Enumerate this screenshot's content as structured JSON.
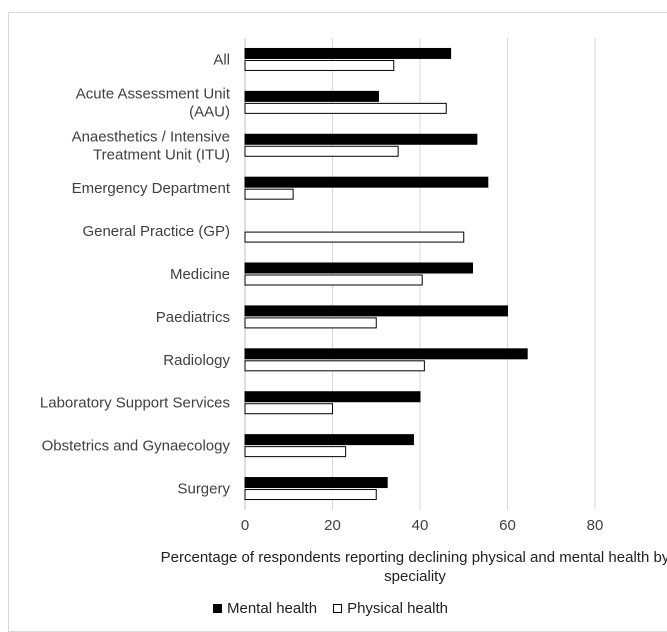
{
  "chart_data": {
    "type": "bar",
    "orientation": "horizontal",
    "categories": [
      [
        "All"
      ],
      [
        "Acute Assessment Unit",
        "(AAU)"
      ],
      [
        "Anaesthetics / Intensive",
        "Treatment Unit (ITU)"
      ],
      [
        "Emergency Department"
      ],
      [
        "General Practice (GP)"
      ],
      [
        "Medicine"
      ],
      [
        "Paediatrics"
      ],
      [
        "Radiology"
      ],
      [
        "Laboratory Support Services"
      ],
      [
        "Obstetrics and Gynaecology"
      ],
      [
        "Surgery"
      ]
    ],
    "series": [
      {
        "name": "Mental health",
        "color": "#000000",
        "values": [
          47,
          30.5,
          53,
          55.5,
          0,
          52,
          60,
          64.5,
          40,
          38.5,
          32.5
        ]
      },
      {
        "name": "Physical health",
        "color": "#ffffff",
        "values": [
          34,
          46,
          35,
          11,
          50,
          40.5,
          30,
          41,
          20,
          23,
          30
        ]
      }
    ],
    "xlabel": "Percentage of respondents reporting declining physical and mental health by speciality",
    "xlim": [
      0,
      80
    ],
    "xticks": [
      0,
      20,
      40,
      60,
      80
    ],
    "grid": true,
    "legend": "bottom"
  }
}
